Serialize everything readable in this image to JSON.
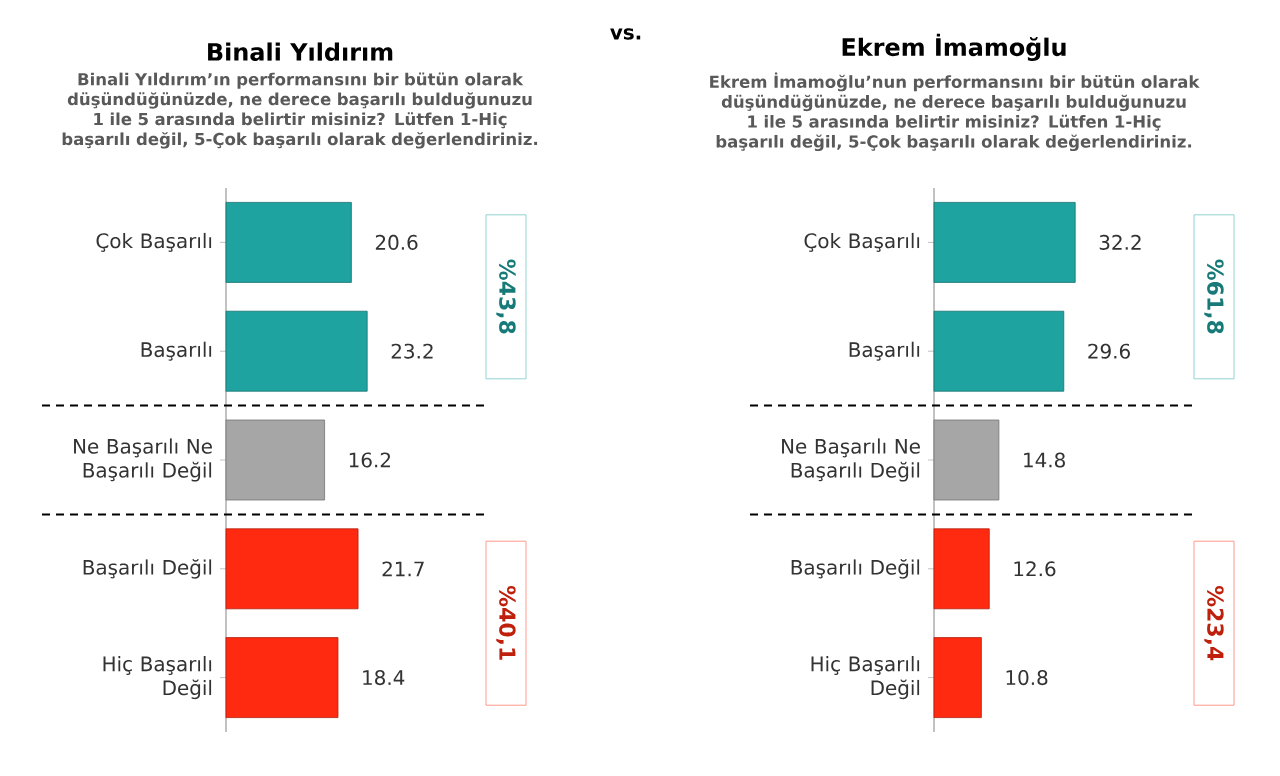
{
  "chart_data": [
    {
      "type": "bar",
      "orientation": "horizontal",
      "title": "Binali Yıldırım",
      "subtitle": "Binali Yıldırım’ın performansını bir bütün olarak düşündüğünüzde, ne derece başarılı bulduğunuzu 1 ile 5 arasında belirtir misiniz? Lütfen 1-Hiç başarılı değil, 5-Çok başarılı olarak değerlendiriniz.",
      "categories": [
        "Çok Başarılı",
        "Başarılı",
        "Ne Başarılı Ne Başarılı Değil",
        "Başarılı Değil",
        "Hiç Başarılı Değil"
      ],
      "values": [
        20.6,
        23.2,
        16.2,
        21.7,
        18.4
      ],
      "colors": [
        "#1fa3a0",
        "#1fa3a0",
        "#a6a6a6",
        "#ff2a10",
        "#ff2a10"
      ],
      "data_labels": true,
      "annotations": [
        "vs.",
        "%43,8",
        "%40,1"
      ]
    },
    {
      "type": "bar",
      "orientation": "horizontal",
      "title": "Ekrem İmamoğlu",
      "subtitle": "Ekrem İmamoğlu’nun performansını bir bütün olarak düşündüğünüzde, ne derece başarılı bulduğunuzu 1 ile 5 arasında belirtir misiniz? Lütfen 1-Hiç başarılı değil, 5-Çok başarılı olarak değerlendiriniz.",
      "categories": [
        "Çok Başarılı",
        "Başarılı",
        "Ne Başarılı Ne Başarılı Değil",
        "Başarılı Değil",
        "Hiç Başarılı Değil"
      ],
      "values": [
        32.2,
        29.6,
        14.8,
        12.6,
        10.8
      ],
      "colors": [
        "#1fa3a0",
        "#1fa3a0",
        "#a6a6a6",
        "#ff2a10",
        "#ff2a10"
      ],
      "data_labels": true,
      "annotations": [
        "%61,8",
        "%23,4"
      ]
    }
  ]
}
